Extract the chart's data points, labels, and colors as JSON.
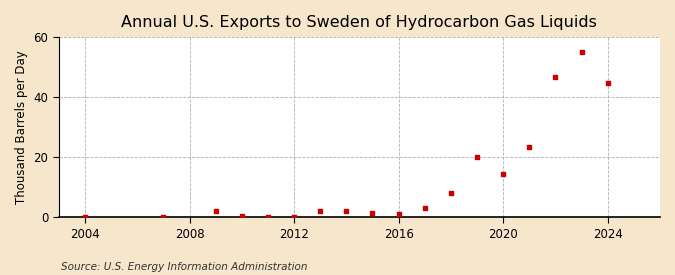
{
  "title": "Annual U.S. Exports to Sweden of Hydrocarbon Gas Liquids",
  "ylabel": "Thousand Barrels per Day",
  "source": "Source: U.S. Energy Information Administration",
  "years": [
    2004,
    2007,
    2009,
    2010,
    2011,
    2012,
    2013,
    2014,
    2015,
    2016,
    2017,
    2018,
    2019,
    2020,
    2021,
    2022,
    2023,
    2024
  ],
  "values": [
    0.0,
    0.1,
    2.0,
    0.5,
    0.2,
    0.1,
    2.0,
    2.0,
    1.5,
    1.0,
    3.0,
    8.0,
    20.0,
    14.5,
    23.5,
    46.5,
    55.0,
    44.5
  ],
  "dot_color": "#cc0000",
  "background_color": "#f5e6cc",
  "plot_bg_color": "#ffffff",
  "grid_color": "#b0b0b0",
  "xlim": [
    2003,
    2026
  ],
  "ylim": [
    0,
    60
  ],
  "xticks": [
    2004,
    2008,
    2012,
    2016,
    2020,
    2024
  ],
  "yticks": [
    0,
    20,
    40,
    60
  ],
  "title_fontsize": 11.5,
  "label_fontsize": 8.5,
  "tick_fontsize": 8.5,
  "source_fontsize": 7.5
}
